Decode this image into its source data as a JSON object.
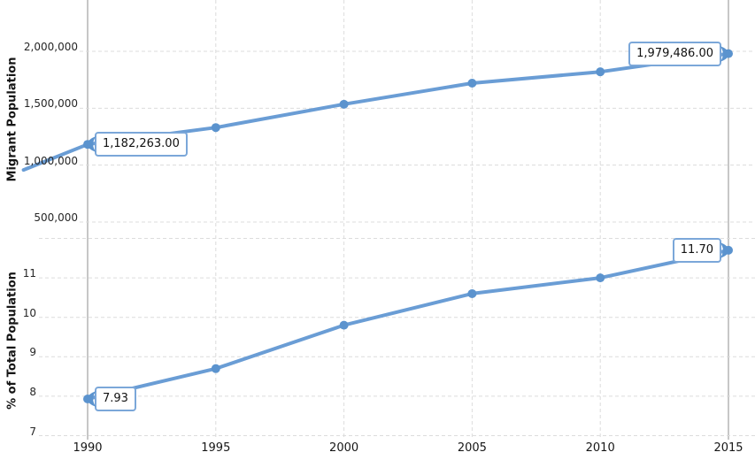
{
  "chart_data": [
    {
      "type": "line",
      "title": "",
      "ylabel": "Migrant Population",
      "x": [
        1990,
        1995,
        2000,
        2005,
        2010,
        2015
      ],
      "values": [
        1182263,
        1330000,
        1535000,
        1720000,
        1820000,
        1979486
      ],
      "lead_in": {
        "x": 1987.5,
        "value": 958000
      },
      "yticks": [
        {
          "value": 2000000,
          "label": "2,000,000"
        },
        {
          "value": 1500000,
          "label": "1,500,000"
        },
        {
          "value": 1000000,
          "label": "1,000,000"
        },
        {
          "value": 500000,
          "label": "500,000"
        }
      ],
      "ylim": [
        500000,
        2450000
      ],
      "grid": "dashed",
      "callouts": [
        {
          "x": 1990,
          "value": 1182263,
          "label": "1,182,263.00",
          "side": "left"
        },
        {
          "x": 2015,
          "value": 1979486,
          "label": "1,979,486.00",
          "side": "right"
        }
      ]
    },
    {
      "type": "line",
      "title": "",
      "ylabel": "% of Total Population",
      "x": [
        1990,
        1995,
        2000,
        2005,
        2010,
        2015
      ],
      "x_labels": [
        "1990",
        "1995",
        "2000",
        "2005",
        "2010",
        "2015"
      ],
      "values": [
        7.93,
        8.7,
        9.8,
        10.6,
        11.0,
        11.7
      ],
      "yticks": [
        {
          "value": 11,
          "label": "11"
        },
        {
          "value": 10,
          "label": "10"
        },
        {
          "value": 9,
          "label": "9"
        },
        {
          "value": 8,
          "label": "8"
        },
        {
          "value": 7,
          "label": "7"
        }
      ],
      "top_boundary_value": 12,
      "ylim": [
        7,
        12
      ],
      "grid": "dashed",
      "callouts": [
        {
          "x": 1990,
          "value": 7.93,
          "label": "7.93",
          "side": "left"
        },
        {
          "x": 2015,
          "value": 11.7,
          "label": "11.70",
          "side": "right"
        }
      ]
    }
  ],
  "colors": {
    "series_line": "#6a9dd5",
    "marker": "#5b93ce",
    "callout_border": "#7ba7d9",
    "grid_dashed": "#dcdcdc",
    "grid_solid": "#8f8f8f",
    "text": "#161616"
  }
}
